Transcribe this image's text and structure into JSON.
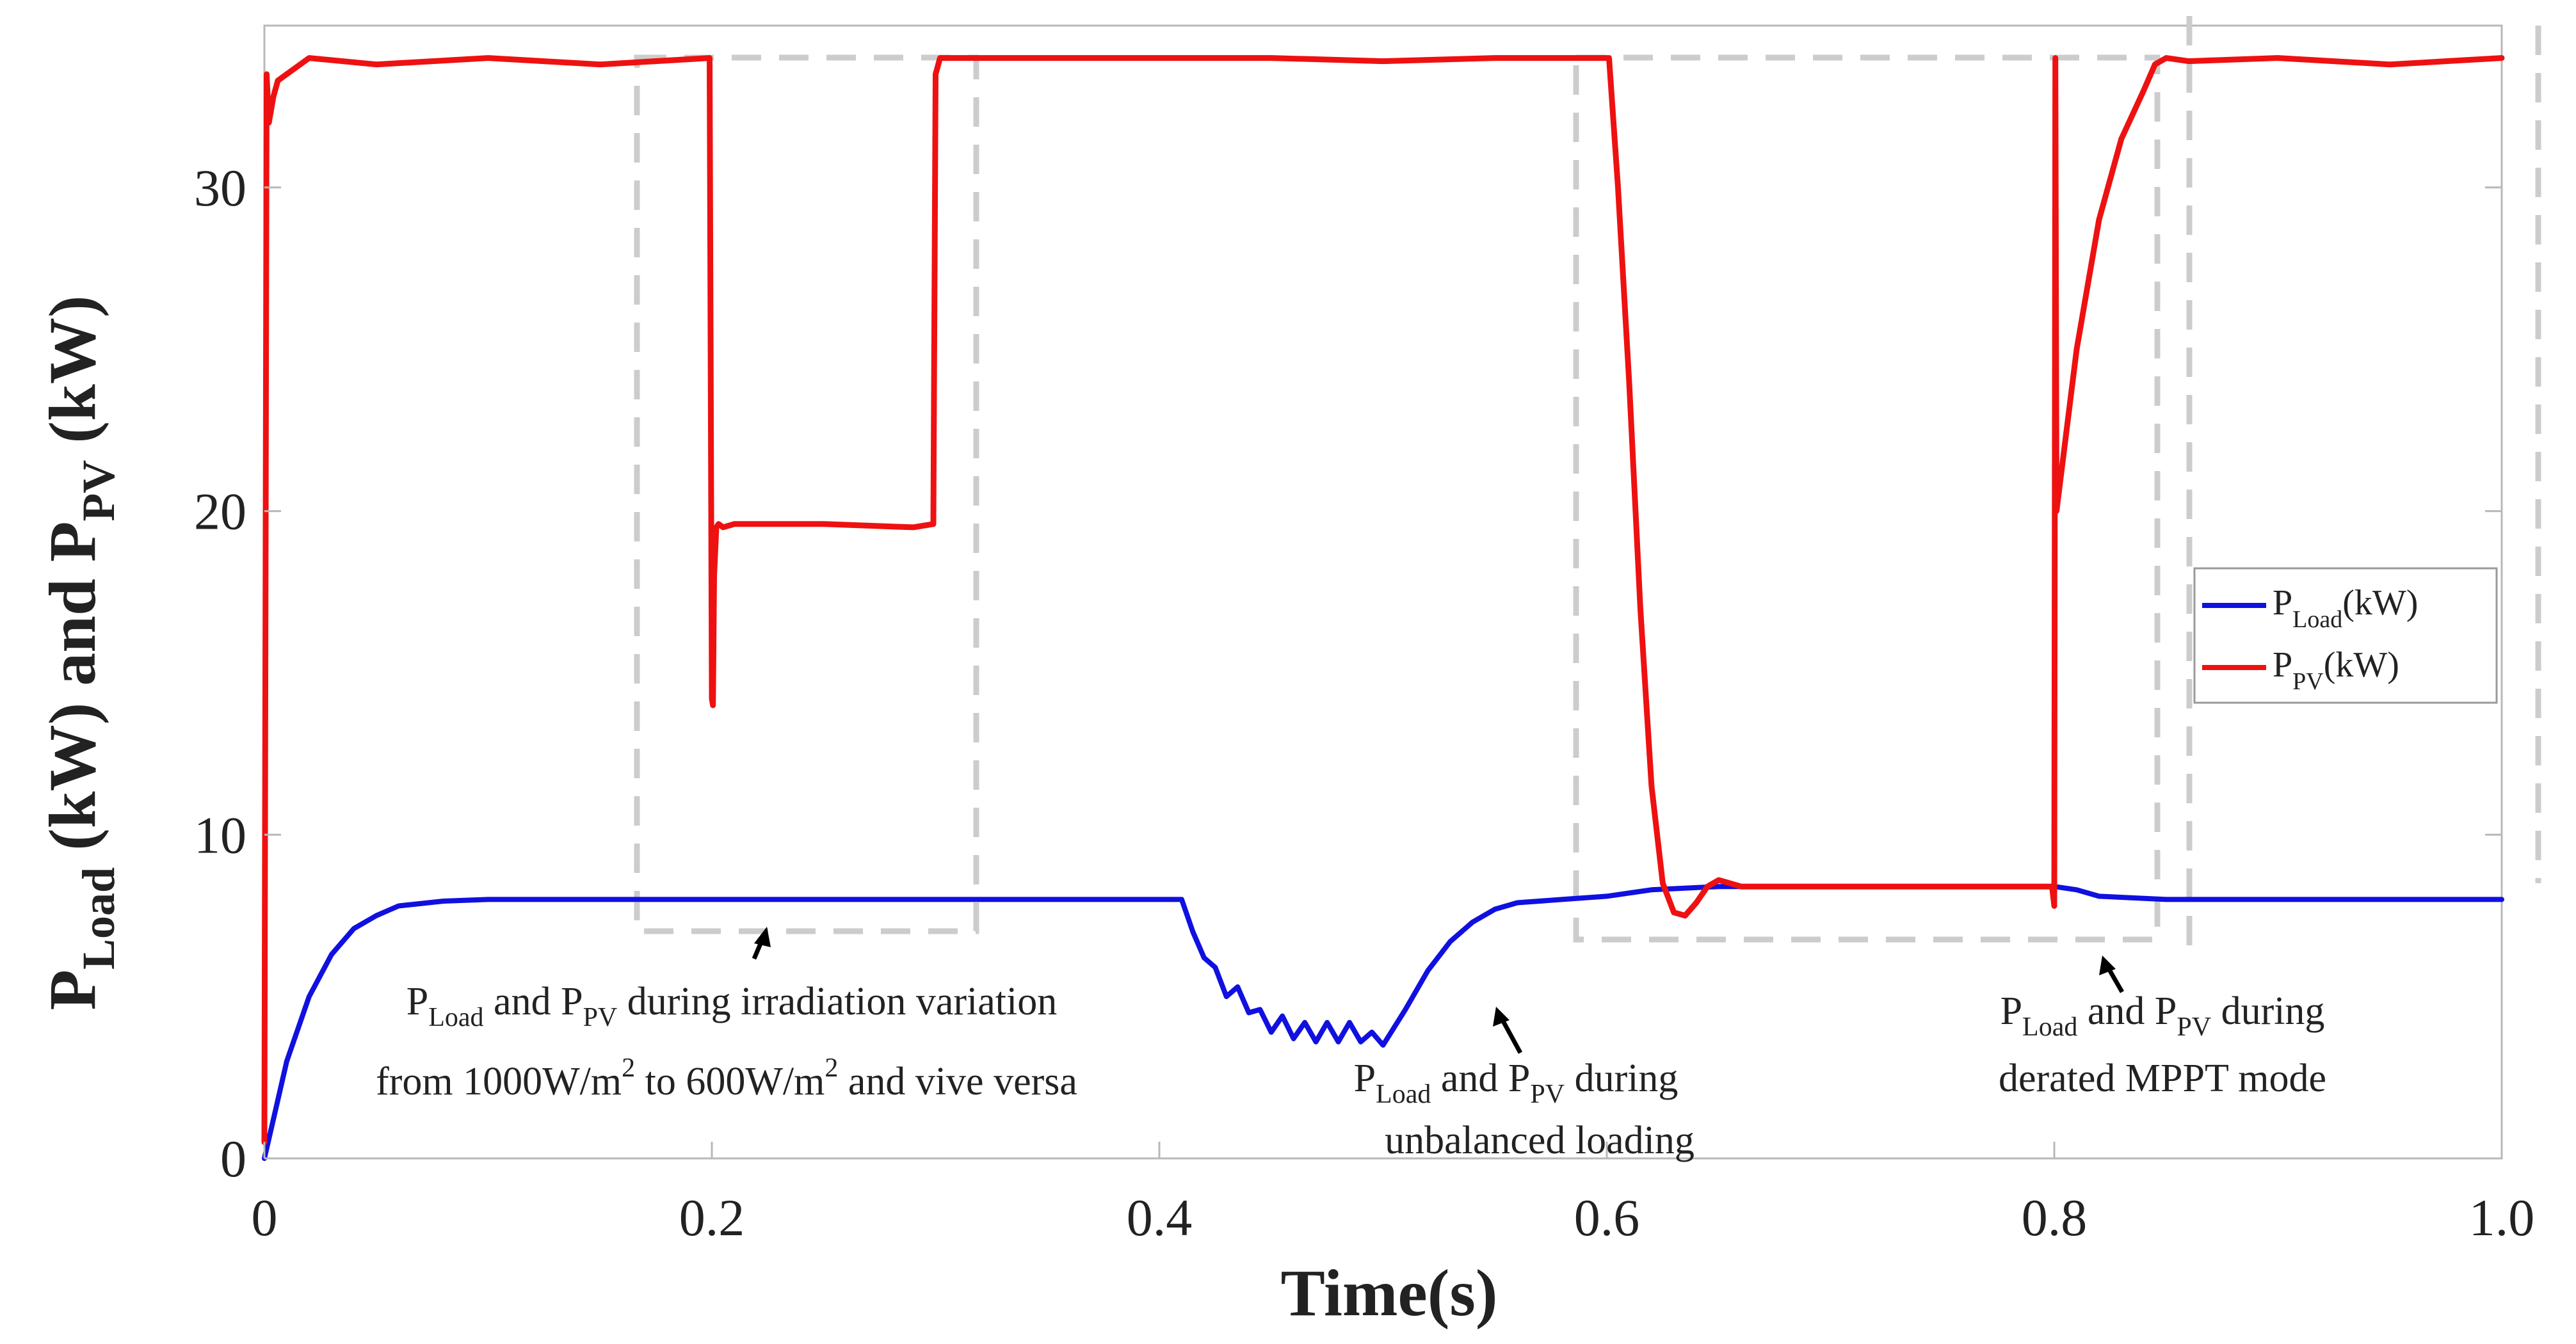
{
  "chart_data": {
    "type": "line",
    "xlabel": "Time(s)",
    "ylabel": {
      "p": "P",
      "load_sub": "Load",
      "mid": " (kW) and ",
      "pv_sub": "PV",
      "tail": " (kW)"
    },
    "xlim": [
      0,
      1.0
    ],
    "ylim": [
      0,
      35
    ],
    "xticks": [
      0,
      0.2,
      0.4,
      0.6,
      0.8,
      1.0
    ],
    "xtick_labels": [
      "0",
      "0.2",
      "0.4",
      "0.6",
      "0.8",
      "1.0"
    ],
    "yticks": [
      0,
      10,
      20,
      30
    ],
    "ytick_labels": [
      "0",
      "10",
      "20",
      "30"
    ],
    "grid": false,
    "legend": {
      "position": "right",
      "entries": [
        {
          "p": "P",
          "sub": "Load",
          "unit": "(kW)",
          "series": "P_Load"
        },
        {
          "p": "P",
          "sub": "PV",
          "unit": "(kW)",
          "series": "P_PV"
        }
      ]
    },
    "series": [
      {
        "name": "P_Load",
        "color": "#1010e0",
        "x": [
          0,
          0.005,
          0.01,
          0.02,
          0.03,
          0.04,
          0.05,
          0.06,
          0.08,
          0.1,
          0.15,
          0.2,
          0.3,
          0.4,
          0.41,
          0.415,
          0.42,
          0.425,
          0.43,
          0.435,
          0.44,
          0.445,
          0.45,
          0.455,
          0.46,
          0.465,
          0.47,
          0.475,
          0.48,
          0.485,
          0.49,
          0.495,
          0.5,
          0.51,
          0.52,
          0.53,
          0.54,
          0.55,
          0.56,
          0.58,
          0.6,
          0.62,
          0.65,
          0.7,
          0.75,
          0.8,
          0.81,
          0.82,
          0.85,
          0.9,
          1.0
        ],
        "values": [
          0,
          1.5,
          3.0,
          5.0,
          6.3,
          7.1,
          7.5,
          7.8,
          7.95,
          8.0,
          8.0,
          8.0,
          8.0,
          8.0,
          8.0,
          7.0,
          6.2,
          5.9,
          5.0,
          5.3,
          4.5,
          4.6,
          3.9,
          4.4,
          3.7,
          4.2,
          3.6,
          4.2,
          3.6,
          4.2,
          3.6,
          3.9,
          3.5,
          4.6,
          5.8,
          6.7,
          7.3,
          7.7,
          7.9,
          8.0,
          8.1,
          8.3,
          8.4,
          8.4,
          8.4,
          8.4,
          8.3,
          8.1,
          8.0,
          8.0,
          8.0
        ]
      },
      {
        "name": "P_PV",
        "color": "#ee1111",
        "x": [
          0,
          0.001,
          0.002,
          0.004,
          0.006,
          0.01,
          0.02,
          0.05,
          0.1,
          0.15,
          0.199,
          0.2,
          0.2005,
          0.201,
          0.202,
          0.203,
          0.205,
          0.21,
          0.25,
          0.29,
          0.299,
          0.3,
          0.302,
          0.35,
          0.4,
          0.45,
          0.5,
          0.55,
          0.6,
          0.601,
          0.605,
          0.61,
          0.615,
          0.62,
          0.625,
          0.63,
          0.635,
          0.64,
          0.645,
          0.65,
          0.655,
          0.66,
          0.67,
          0.7,
          0.75,
          0.799,
          0.8,
          0.8005,
          0.801,
          0.81,
          0.82,
          0.83,
          0.84,
          0.845,
          0.85,
          0.86,
          0.9,
          0.95,
          1.0
        ],
        "values": [
          0.5,
          33.5,
          32.0,
          32.8,
          33.3,
          33.5,
          34.0,
          33.8,
          34.0,
          33.8,
          34.0,
          14.2,
          14.0,
          18.0,
          19.5,
          19.6,
          19.5,
          19.6,
          19.6,
          19.5,
          19.6,
          33.5,
          34.0,
          34.0,
          34.0,
          34.0,
          33.9,
          34.0,
          34.0,
          34.0,
          30.0,
          24.0,
          17.0,
          11.5,
          8.5,
          7.6,
          7.5,
          7.9,
          8.4,
          8.6,
          8.5,
          8.4,
          8.4,
          8.4,
          8.4,
          8.4,
          7.8,
          34.0,
          20.0,
          25.0,
          29.0,
          31.5,
          33.0,
          33.8,
          34.0,
          33.9,
          34.0,
          33.8,
          34.0
        ]
      }
    ],
    "annotations": [
      {
        "line1": {
          "p1": "P",
          "s1": "Load",
          "mid": " and ",
          "p2": "P",
          "s2": "PV",
          "tail": " during irradiation variation"
        },
        "line2": {
          "a": "from 1000W/m",
          "sup1": "2",
          "b": " to 600W/m",
          "sup2": "2",
          "c": " and vive versa"
        }
      },
      {
        "line1": {
          "p1": "P",
          "s1": "Load",
          "mid": " and ",
          "p2": "P",
          "s2": "PV",
          "tail": " during"
        },
        "line2": "unbalanced loading"
      },
      {
        "line1": {
          "p1": "P",
          "s1": "Load",
          "mid": " and ",
          "p2": "P",
          "s2": "PV",
          "tail": " during"
        },
        "line2": "derated MPPT mode"
      }
    ]
  }
}
